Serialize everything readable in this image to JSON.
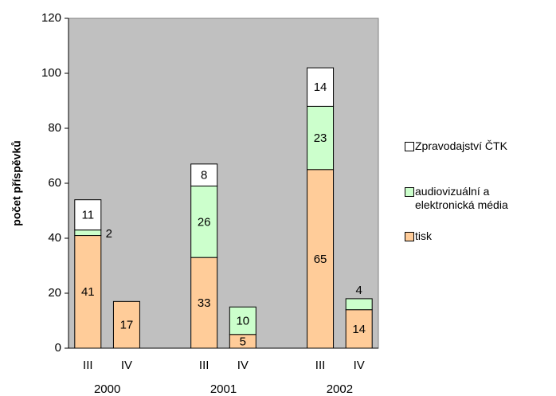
{
  "chart_data": {
    "type": "stacked_bar",
    "y_label": "počet příspěvků",
    "categories": [
      "III",
      "IV",
      null,
      "III",
      "IV",
      null,
      "III",
      "IV"
    ],
    "groups": [
      "2000",
      "2001",
      "2002"
    ],
    "series": [
      {
        "name": "tisk",
        "color": "#ffcc99",
        "values": [
          41,
          17,
          null,
          33,
          5,
          null,
          65,
          14
        ]
      },
      {
        "name": "audiovizuální a elektronická média",
        "color": "#ccffcc",
        "values": [
          2,
          null,
          null,
          26,
          10,
          null,
          23,
          4
        ]
      },
      {
        "name": "Zpravodajství ČTK",
        "color": "#ffffff",
        "values": [
          11,
          null,
          null,
          8,
          null,
          null,
          14,
          null
        ]
      }
    ],
    "ylim": [
      0,
      120
    ],
    "yticks": [
      0,
      20,
      40,
      60,
      80,
      100,
      120
    ],
    "plot_color": "#c0c0c0"
  }
}
